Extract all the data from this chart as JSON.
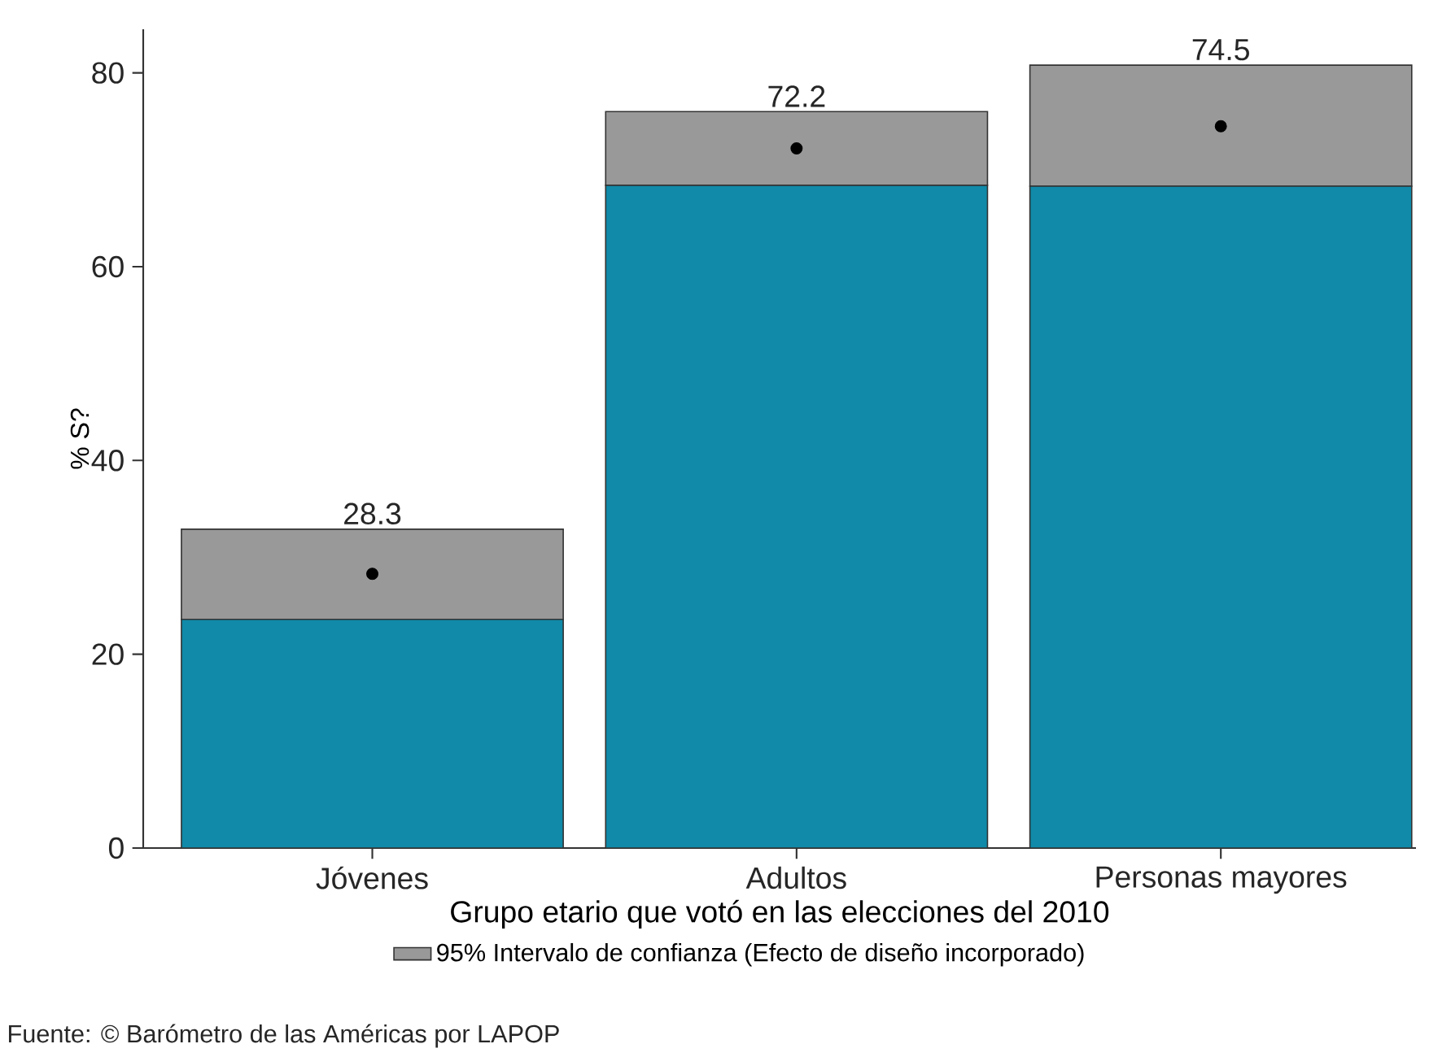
{
  "chart_data": {
    "type": "bar",
    "stacked": true,
    "ylabel": "% S?",
    "xlabel": "Grupo etario que votó en las elecciones del 2010",
    "categories": [
      "Jóvenes",
      "Adultos",
      "Personas mayores"
    ],
    "series": [
      {
        "color": "#108aa8",
        "values": [
          23.6,
          68.4,
          68.3
        ]
      },
      {
        "name": "95% Intervalo de confianza (Efecto de diseño incorporado)",
        "color": "#999999",
        "values": [
          9.3,
          7.6,
          12.5
        ]
      },
      {
        "type": "scatter",
        "x": [
          "Jóvenes",
          "Adultos",
          "Personas mayores"
        ],
        "color": "#000000",
        "values": [
          28.3,
          72.2,
          74.5
        ],
        "value_labels": [
          "28.3",
          "72.2",
          "74.5"
        ]
      }
    ],
    "ylim": [
      0,
      84.5
    ],
    "yticks": [
      0,
      20,
      40,
      60,
      80
    ],
    "legend": "bottom",
    "marker": "circle",
    "annotations": [
      "Fuente: © Barómetro de las Américas por LAPOP"
    ]
  }
}
